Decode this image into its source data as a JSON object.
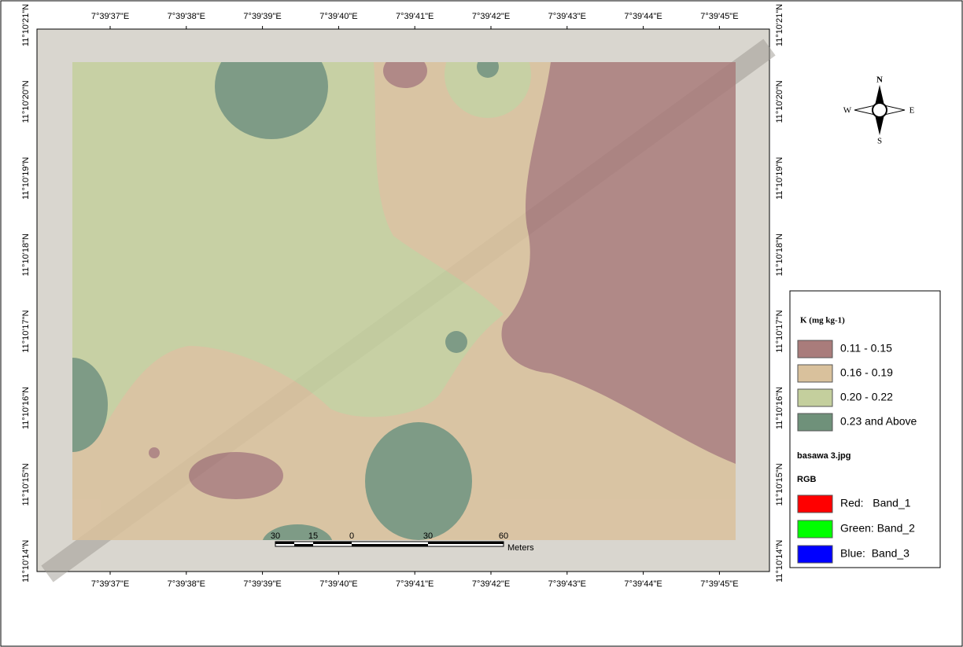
{
  "map": {
    "lon_labels": [
      "7°39'37\"E",
      "7°39'38\"E",
      "7°39'39\"E",
      "7°39'40\"E",
      "7°39'41\"E",
      "7°39'42\"E",
      "7°39'43\"E",
      "7°39'44\"E",
      "7°39'45\"E"
    ],
    "lat_labels": [
      "11°10'21\"N",
      "11°10'20\"N",
      "11°10'19\"N",
      "11°10'18\"N",
      "11°10'17\"N",
      "11°10'16\"N",
      "11°10'15\"N",
      "11°10'14\"N"
    ],
    "compass": {
      "n": "N",
      "e": "E",
      "s": "S",
      "w": "W"
    }
  },
  "legend": {
    "title": "K (mg kg-1)",
    "classes": [
      {
        "label": "0.11 - 0.15",
        "color": "#a97c7b"
      },
      {
        "label": "0.16 - 0.19",
        "color": "#d9c19c"
      },
      {
        "label": "0.20 - 0.22",
        "color": "#c4cf9d"
      },
      {
        "label": "0.23 and Above",
        "color": "#6f917a"
      }
    ],
    "raster": "basawa 3.jpg",
    "rgb": "RGB",
    "bands": [
      {
        "label": "Red:   Band_1",
        "color": "#ff0000"
      },
      {
        "label": "Green: Band_2",
        "color": "#00ff00"
      },
      {
        "label": "Blue:  Band_3",
        "color": "#0000ff"
      }
    ]
  },
  "scale_bar": {
    "labels": [
      30,
      15,
      0,
      30,
      60
    ],
    "unit": "Meters"
  }
}
